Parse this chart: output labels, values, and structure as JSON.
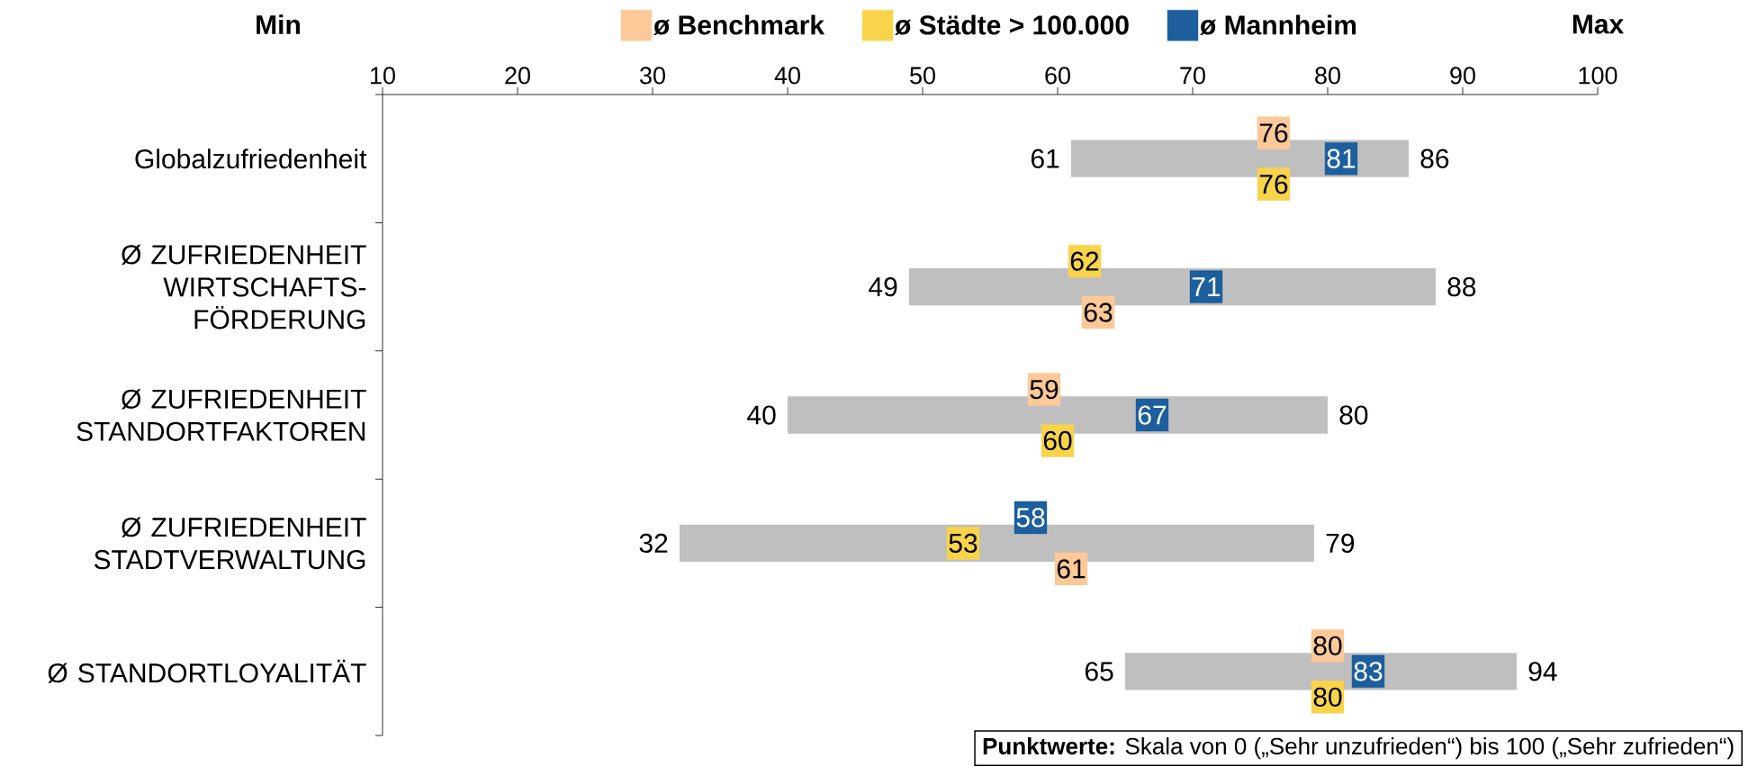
{
  "chart_data": {
    "type": "bar",
    "orientation": "horizontal",
    "categories": [
      "Globalzufriedenheit",
      "Ø ZUFRIEDENHEIT WIRTSCHAFTS-FÖRDERUNG",
      "Ø ZUFRIEDENHEIT STANDORTFAKTOREN",
      "Ø ZUFRIEDENHEIT STADTVERWALTUNG",
      "Ø STANDORTLOYALITÄT"
    ],
    "series": [
      {
        "color": "#bfbfbf",
        "base": [
          61,
          49,
          40,
          32,
          65
        ],
        "values": [
          25,
          39,
          40,
          47,
          29
        ]
      },
      {
        "name": "ø Benchmark",
        "type": "scatter",
        "marker": "square",
        "data_labels": true,
        "color": "#fdc998",
        "values": [
          76,
          63,
          59,
          61,
          80
        ]
      },
      {
        "name": "ø Städte > 100.000",
        "type": "scatter",
        "marker": "square",
        "data_labels": true,
        "color": "#f9d44a",
        "values": [
          76,
          62,
          60,
          53,
          80
        ]
      },
      {
        "name": "ø Mannheim",
        "type": "scatter",
        "marker": "square",
        "data_labels": true,
        "color": "#1c5f9c",
        "values": [
          81,
          71,
          67,
          58,
          83
        ]
      }
    ],
    "xlim": [
      10,
      100
    ],
    "xticks": [
      10,
      20,
      30,
      40,
      50,
      60,
      70,
      80,
      90,
      100
    ],
    "legend": "top",
    "annotations": [
      "Min",
      "Max",
      {
        "text": "61",
        "x": 61,
        "y": "Globalzufriedenheit"
      },
      {
        "text": "86",
        "x": 86,
        "y": "Globalzufriedenheit"
      },
      {
        "text": "49",
        "x": 49,
        "y": "Ø ZUFRIEDENHEIT WIRTSCHAFTS-FÖRDERUNG"
      },
      {
        "text": "88",
        "x": 88,
        "y": "Ø ZUFRIEDENHEIT WIRTSCHAFTS-FÖRDERUNG"
      },
      {
        "text": "40",
        "x": 40,
        "y": "Ø ZUFRIEDENHEIT STANDORTFAKTOREN"
      },
      {
        "text": "80",
        "x": 80,
        "y": "Ø ZUFRIEDENHEIT STANDORTFAKTOREN"
      },
      {
        "text": "32",
        "x": 32,
        "y": "Ø ZUFRIEDENHEIT STADTVERWALTUNG"
      },
      {
        "text": "79",
        "x": 79,
        "y": "Ø ZUFRIEDENHEIT STADTVERWALTUNG"
      },
      {
        "text": "65",
        "x": 65,
        "y": "Ø STANDORTLOYALITÄT"
      },
      {
        "text": "94",
        "x": 94,
        "y": "Ø STANDORTLOYALITÄT"
      },
      "**Punktwerte:** Skala von 0 („Sehr unzufrieden“) bis 100 („Sehr zufrieden“)"
    ]
  }
}
